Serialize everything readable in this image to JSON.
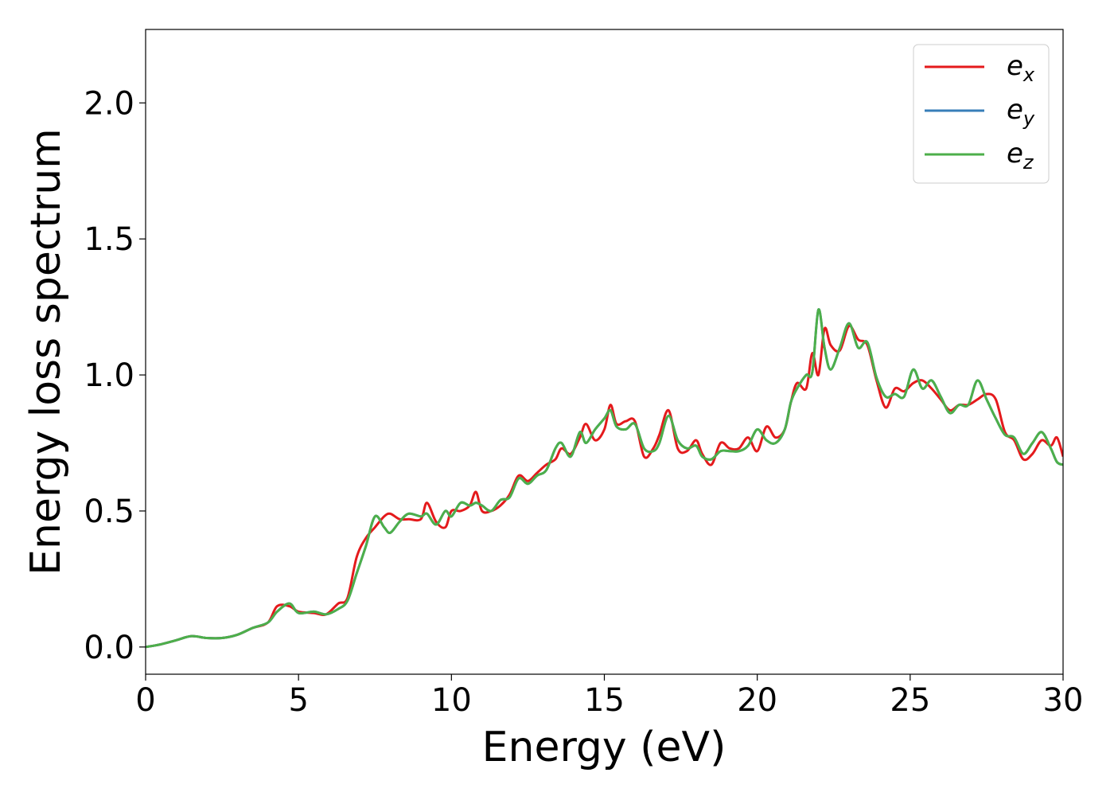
{
  "chart_data": {
    "type": "line",
    "title": "",
    "xlabel": "Energy (eV)",
    "ylabel": "Energy loss spectrum",
    "xlim": [
      0,
      30
    ],
    "ylim": [
      -0.1,
      2.27
    ],
    "xticks": [
      0,
      5,
      10,
      15,
      20,
      25,
      30
    ],
    "yticks": [
      0.0,
      0.5,
      1.0,
      1.5,
      2.0
    ],
    "xtick_labels": [
      "0",
      "5",
      "10",
      "15",
      "20",
      "25",
      "30"
    ],
    "ytick_labels": [
      "0.0",
      "0.5",
      "1.0",
      "1.5",
      "2.0"
    ],
    "grid": false,
    "legend_position": "top-right",
    "series": [
      {
        "name": "e",
        "subscript": "x",
        "color": "#e41a1c",
        "points": [
          [
            0,
            0.0
          ],
          [
            0.5,
            0.01
          ],
          [
            1.0,
            0.025
          ],
          [
            1.5,
            0.04
          ],
          [
            2.0,
            0.033
          ],
          [
            2.5,
            0.033
          ],
          [
            3.0,
            0.045
          ],
          [
            3.5,
            0.07
          ],
          [
            4.0,
            0.09
          ],
          [
            4.3,
            0.15
          ],
          [
            4.7,
            0.15
          ],
          [
            5.0,
            0.13
          ],
          [
            5.5,
            0.125
          ],
          [
            5.9,
            0.12
          ],
          [
            6.3,
            0.16
          ],
          [
            6.6,
            0.18
          ],
          [
            6.9,
            0.33
          ],
          [
            7.2,
            0.4
          ],
          [
            7.5,
            0.44
          ],
          [
            7.8,
            0.48
          ],
          [
            8.0,
            0.49
          ],
          [
            8.3,
            0.47
          ],
          [
            8.6,
            0.47
          ],
          [
            9.0,
            0.47
          ],
          [
            9.2,
            0.53
          ],
          [
            9.5,
            0.46
          ],
          [
            9.8,
            0.44
          ],
          [
            10.0,
            0.5
          ],
          [
            10.3,
            0.5
          ],
          [
            10.6,
            0.52
          ],
          [
            10.8,
            0.57
          ],
          [
            11.0,
            0.5
          ],
          [
            11.3,
            0.5
          ],
          [
            11.6,
            0.52
          ],
          [
            11.9,
            0.56
          ],
          [
            12.2,
            0.63
          ],
          [
            12.5,
            0.61
          ],
          [
            12.8,
            0.64
          ],
          [
            13.1,
            0.67
          ],
          [
            13.4,
            0.69
          ],
          [
            13.6,
            0.73
          ],
          [
            13.9,
            0.71
          ],
          [
            14.2,
            0.77
          ],
          [
            14.4,
            0.82
          ],
          [
            14.7,
            0.76
          ],
          [
            15.0,
            0.8
          ],
          [
            15.2,
            0.89
          ],
          [
            15.4,
            0.82
          ],
          [
            15.7,
            0.83
          ],
          [
            16.0,
            0.83
          ],
          [
            16.3,
            0.7
          ],
          [
            16.6,
            0.73
          ],
          [
            16.8,
            0.78
          ],
          [
            17.1,
            0.87
          ],
          [
            17.4,
            0.73
          ],
          [
            17.7,
            0.72
          ],
          [
            18.0,
            0.76
          ],
          [
            18.2,
            0.71
          ],
          [
            18.5,
            0.67
          ],
          [
            18.8,
            0.75
          ],
          [
            19.1,
            0.73
          ],
          [
            19.4,
            0.73
          ],
          [
            19.7,
            0.77
          ],
          [
            20.0,
            0.72
          ],
          [
            20.3,
            0.81
          ],
          [
            20.6,
            0.77
          ],
          [
            20.9,
            0.8
          ],
          [
            21.1,
            0.9
          ],
          [
            21.3,
            0.97
          ],
          [
            21.6,
            0.95
          ],
          [
            21.8,
            1.08
          ],
          [
            22.0,
            1.0
          ],
          [
            22.2,
            1.17
          ],
          [
            22.4,
            1.11
          ],
          [
            22.7,
            1.09
          ],
          [
            23.0,
            1.18
          ],
          [
            23.3,
            1.13
          ],
          [
            23.6,
            1.11
          ],
          [
            23.9,
            0.98
          ],
          [
            24.2,
            0.88
          ],
          [
            24.5,
            0.95
          ],
          [
            24.8,
            0.94
          ],
          [
            25.1,
            0.97
          ],
          [
            25.4,
            0.98
          ],
          [
            25.7,
            0.95
          ],
          [
            26.0,
            0.91
          ],
          [
            26.3,
            0.87
          ],
          [
            26.6,
            0.89
          ],
          [
            26.9,
            0.89
          ],
          [
            27.2,
            0.91
          ],
          [
            27.5,
            0.93
          ],
          [
            27.8,
            0.91
          ],
          [
            28.1,
            0.79
          ],
          [
            28.4,
            0.76
          ],
          [
            28.7,
            0.69
          ],
          [
            29.0,
            0.71
          ],
          [
            29.3,
            0.76
          ],
          [
            29.6,
            0.74
          ],
          [
            29.8,
            0.77
          ],
          [
            30.0,
            0.7
          ]
        ]
      },
      {
        "name": "e",
        "subscript": "y",
        "color": "#377eb8",
        "points": [
          [
            0,
            0.0
          ],
          [
            0.5,
            0.01
          ],
          [
            1.0,
            0.025
          ],
          [
            1.5,
            0.04
          ],
          [
            2.0,
            0.033
          ],
          [
            2.5,
            0.033
          ],
          [
            3.0,
            0.045
          ],
          [
            3.5,
            0.07
          ],
          [
            4.0,
            0.09
          ],
          [
            4.3,
            0.13
          ],
          [
            4.7,
            0.16
          ],
          [
            5.0,
            0.125
          ],
          [
            5.5,
            0.13
          ],
          [
            5.9,
            0.12
          ],
          [
            6.3,
            0.14
          ],
          [
            6.6,
            0.17
          ],
          [
            6.9,
            0.27
          ],
          [
            7.2,
            0.37
          ],
          [
            7.5,
            0.48
          ],
          [
            7.8,
            0.44
          ],
          [
            8.0,
            0.42
          ],
          [
            8.3,
            0.46
          ],
          [
            8.6,
            0.49
          ],
          [
            9.0,
            0.48
          ],
          [
            9.2,
            0.49
          ],
          [
            9.5,
            0.45
          ],
          [
            9.8,
            0.5
          ],
          [
            10.0,
            0.48
          ],
          [
            10.3,
            0.53
          ],
          [
            10.6,
            0.52
          ],
          [
            10.8,
            0.53
          ],
          [
            11.0,
            0.52
          ],
          [
            11.3,
            0.5
          ],
          [
            11.6,
            0.54
          ],
          [
            11.9,
            0.55
          ],
          [
            12.2,
            0.62
          ],
          [
            12.5,
            0.6
          ],
          [
            12.8,
            0.63
          ],
          [
            13.1,
            0.65
          ],
          [
            13.4,
            0.73
          ],
          [
            13.6,
            0.75
          ],
          [
            13.9,
            0.7
          ],
          [
            14.2,
            0.79
          ],
          [
            14.4,
            0.75
          ],
          [
            14.7,
            0.8
          ],
          [
            15.0,
            0.84
          ],
          [
            15.2,
            0.87
          ],
          [
            15.4,
            0.81
          ],
          [
            15.7,
            0.8
          ],
          [
            16.0,
            0.82
          ],
          [
            16.3,
            0.73
          ],
          [
            16.6,
            0.72
          ],
          [
            16.8,
            0.75
          ],
          [
            17.1,
            0.85
          ],
          [
            17.4,
            0.76
          ],
          [
            17.7,
            0.73
          ],
          [
            18.0,
            0.74
          ],
          [
            18.2,
            0.7
          ],
          [
            18.5,
            0.69
          ],
          [
            18.8,
            0.72
          ],
          [
            19.1,
            0.72
          ],
          [
            19.4,
            0.72
          ],
          [
            19.7,
            0.74
          ],
          [
            20.0,
            0.8
          ],
          [
            20.3,
            0.76
          ],
          [
            20.6,
            0.75
          ],
          [
            20.9,
            0.8
          ],
          [
            21.1,
            0.9
          ],
          [
            21.3,
            0.95
          ],
          [
            21.6,
            1.0
          ],
          [
            21.8,
            1.01
          ],
          [
            22.0,
            1.24
          ],
          [
            22.2,
            1.1
          ],
          [
            22.4,
            1.02
          ],
          [
            22.7,
            1.1
          ],
          [
            23.0,
            1.19
          ],
          [
            23.3,
            1.1
          ],
          [
            23.6,
            1.12
          ],
          [
            23.9,
            0.99
          ],
          [
            24.2,
            0.92
          ],
          [
            24.5,
            0.93
          ],
          [
            24.8,
            0.92
          ],
          [
            25.1,
            1.02
          ],
          [
            25.4,
            0.95
          ],
          [
            25.7,
            0.98
          ],
          [
            26.0,
            0.92
          ],
          [
            26.3,
            0.86
          ],
          [
            26.6,
            0.89
          ],
          [
            26.9,
            0.89
          ],
          [
            27.2,
            0.98
          ],
          [
            27.5,
            0.91
          ],
          [
            27.8,
            0.84
          ],
          [
            28.1,
            0.78
          ],
          [
            28.4,
            0.77
          ],
          [
            28.7,
            0.71
          ],
          [
            29.0,
            0.75
          ],
          [
            29.3,
            0.79
          ],
          [
            29.6,
            0.73
          ],
          [
            29.8,
            0.68
          ],
          [
            30.0,
            0.67
          ]
        ]
      },
      {
        "name": "e",
        "subscript": "z",
        "color": "#4daf4a",
        "points": [
          [
            0,
            0.0
          ],
          [
            0.5,
            0.01
          ],
          [
            1.0,
            0.025
          ],
          [
            1.5,
            0.04
          ],
          [
            2.0,
            0.033
          ],
          [
            2.5,
            0.033
          ],
          [
            3.0,
            0.045
          ],
          [
            3.5,
            0.07
          ],
          [
            4.0,
            0.09
          ],
          [
            4.3,
            0.13
          ],
          [
            4.7,
            0.16
          ],
          [
            5.0,
            0.125
          ],
          [
            5.5,
            0.13
          ],
          [
            5.9,
            0.12
          ],
          [
            6.3,
            0.14
          ],
          [
            6.6,
            0.17
          ],
          [
            6.9,
            0.27
          ],
          [
            7.2,
            0.37
          ],
          [
            7.5,
            0.48
          ],
          [
            7.8,
            0.44
          ],
          [
            8.0,
            0.42
          ],
          [
            8.3,
            0.46
          ],
          [
            8.6,
            0.49
          ],
          [
            9.0,
            0.48
          ],
          [
            9.2,
            0.49
          ],
          [
            9.5,
            0.45
          ],
          [
            9.8,
            0.5
          ],
          [
            10.0,
            0.48
          ],
          [
            10.3,
            0.53
          ],
          [
            10.6,
            0.52
          ],
          [
            10.8,
            0.53
          ],
          [
            11.0,
            0.52
          ],
          [
            11.3,
            0.5
          ],
          [
            11.6,
            0.54
          ],
          [
            11.9,
            0.55
          ],
          [
            12.2,
            0.62
          ],
          [
            12.5,
            0.6
          ],
          [
            12.8,
            0.63
          ],
          [
            13.1,
            0.65
          ],
          [
            13.4,
            0.73
          ],
          [
            13.6,
            0.75
          ],
          [
            13.9,
            0.7
          ],
          [
            14.2,
            0.79
          ],
          [
            14.4,
            0.75
          ],
          [
            14.7,
            0.8
          ],
          [
            15.0,
            0.84
          ],
          [
            15.2,
            0.87
          ],
          [
            15.4,
            0.81
          ],
          [
            15.7,
            0.8
          ],
          [
            16.0,
            0.82
          ],
          [
            16.3,
            0.73
          ],
          [
            16.6,
            0.72
          ],
          [
            16.8,
            0.75
          ],
          [
            17.1,
            0.85
          ],
          [
            17.4,
            0.76
          ],
          [
            17.7,
            0.73
          ],
          [
            18.0,
            0.74
          ],
          [
            18.2,
            0.7
          ],
          [
            18.5,
            0.69
          ],
          [
            18.8,
            0.72
          ],
          [
            19.1,
            0.72
          ],
          [
            19.4,
            0.72
          ],
          [
            19.7,
            0.74
          ],
          [
            20.0,
            0.8
          ],
          [
            20.3,
            0.76
          ],
          [
            20.6,
            0.75
          ],
          [
            20.9,
            0.8
          ],
          [
            21.1,
            0.9
          ],
          [
            21.3,
            0.95
          ],
          [
            21.6,
            1.0
          ],
          [
            21.8,
            1.01
          ],
          [
            22.0,
            1.24
          ],
          [
            22.2,
            1.1
          ],
          [
            22.4,
            1.02
          ],
          [
            22.7,
            1.1
          ],
          [
            23.0,
            1.19
          ],
          [
            23.3,
            1.1
          ],
          [
            23.6,
            1.12
          ],
          [
            23.9,
            0.99
          ],
          [
            24.2,
            0.92
          ],
          [
            24.5,
            0.93
          ],
          [
            24.8,
            0.92
          ],
          [
            25.1,
            1.02
          ],
          [
            25.4,
            0.95
          ],
          [
            25.7,
            0.98
          ],
          [
            26.0,
            0.92
          ],
          [
            26.3,
            0.86
          ],
          [
            26.6,
            0.89
          ],
          [
            26.9,
            0.89
          ],
          [
            27.2,
            0.98
          ],
          [
            27.5,
            0.91
          ],
          [
            27.8,
            0.84
          ],
          [
            28.1,
            0.78
          ],
          [
            28.4,
            0.77
          ],
          [
            28.7,
            0.71
          ],
          [
            29.0,
            0.75
          ],
          [
            29.3,
            0.79
          ],
          [
            29.6,
            0.73
          ],
          [
            29.8,
            0.68
          ],
          [
            30.0,
            0.67
          ]
        ]
      }
    ]
  }
}
